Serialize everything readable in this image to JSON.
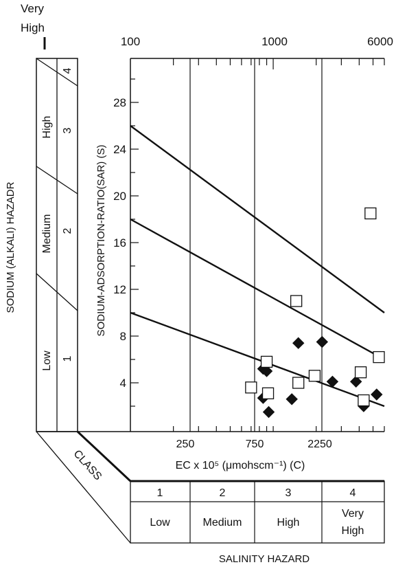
{
  "chart_data": {
    "type": "scatter",
    "title": "",
    "ylabel": "SODIUM-ADSORPTION-RATIO(SAR) (S)",
    "xlabel": "EC x 10⁵ (μmohscm⁻¹) (C)",
    "top_scale_labels": [
      "100",
      "1000",
      "6000"
    ],
    "x_ticks": [
      "250",
      "750",
      "2250"
    ],
    "ylim": [
      0,
      30
    ],
    "y_ticks": [
      4,
      8,
      12,
      16,
      20,
      24,
      28
    ],
    "x_scale": "log",
    "xlim": [
      100,
      6000
    ],
    "classification_lines": [
      {
        "x": [
          100,
          6000
        ],
        "y": [
          26,
          10
        ]
      },
      {
        "x": [
          100,
          6000
        ],
        "y": [
          18,
          6
        ]
      },
      {
        "x": [
          100,
          6000
        ],
        "y": [
          10,
          2
        ]
      }
    ],
    "series": [
      {
        "marker": "filled-diamond",
        "points": [
          {
            "x": 850,
            "y": 5.2
          },
          {
            "x": 900,
            "y": 5.0
          },
          {
            "x": 850,
            "y": 2.7
          },
          {
            "x": 930,
            "y": 1.5
          },
          {
            "x": 1500,
            "y": 7.4
          },
          {
            "x": 2200,
            "y": 7.5
          },
          {
            "x": 1350,
            "y": 2.6
          },
          {
            "x": 2600,
            "y": 4.1
          },
          {
            "x": 3800,
            "y": 4.1
          },
          {
            "x": 4300,
            "y": 2.0
          },
          {
            "x": 5300,
            "y": 3.0
          }
        ]
      },
      {
        "marker": "open-square",
        "points": [
          {
            "x": 700,
            "y": 3.6
          },
          {
            "x": 900,
            "y": 5.8
          },
          {
            "x": 920,
            "y": 3.1
          },
          {
            "x": 1450,
            "y": 11.0
          },
          {
            "x": 1500,
            "y": 4.0
          },
          {
            "x": 1950,
            "y": 4.6
          },
          {
            "x": 4100,
            "y": 4.9
          },
          {
            "x": 4300,
            "y": 2.5
          },
          {
            "x": 4800,
            "y": 18.5
          },
          {
            "x": 6000,
            "y": 6.2
          }
        ]
      }
    ]
  },
  "sodium_hazard": {
    "axis_label": "SODIUM (ALKALI) HAZADR",
    "top_label": [
      "Very",
      "High"
    ],
    "levels": [
      {
        "name": "Low",
        "class": "1"
      },
      {
        "name": "Medium",
        "class": "2"
      },
      {
        "name": "High",
        "class": "3"
      },
      {
        "name": "",
        "class": "4"
      }
    ]
  },
  "salinity_hazard": {
    "axis_label": "SALINITY HAZARD",
    "class_label": "CLASS",
    "levels": [
      {
        "class": "1",
        "name": [
          "Low"
        ]
      },
      {
        "class": "2",
        "name": [
          "Medium"
        ]
      },
      {
        "class": "3",
        "name": [
          "High"
        ]
      },
      {
        "class": "4",
        "name": [
          "Very",
          "High"
        ]
      }
    ]
  },
  "colors": {
    "ink": "#111111",
    "background": "#ffffff"
  }
}
